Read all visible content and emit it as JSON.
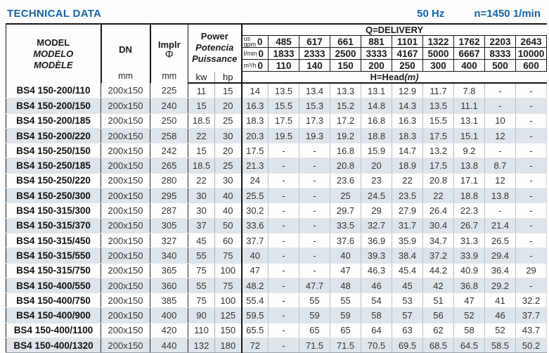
{
  "page": {
    "title": "TECHNICAL DATA",
    "frequency": "50 Hz",
    "speed": "n=1450 1/min",
    "accent_color": "#1565a8",
    "stripe_color": "#dde4ea"
  },
  "table": {
    "header": {
      "model_labels": [
        "MODEL",
        "MODELO",
        "MODÈLE"
      ],
      "dn_label": "DN",
      "implr_label": "Implr",
      "implr_symbol": "Φ",
      "power_labels": [
        "Power",
        "Potencia",
        "Puissance"
      ],
      "unit_mm": "mm",
      "unit_kw": "kw",
      "unit_hp": "hp",
      "delivery_title": "Q=DELIVERY",
      "head_title": "H=Head",
      "head_unit": "(m)",
      "unit_rows": [
        {
          "label_lines": [
            "us",
            "gpm"
          ],
          "zero": "0",
          "values": [
            "485",
            "617",
            "661",
            "881",
            "1101",
            "1322",
            "1762",
            "2203",
            "2643"
          ]
        },
        {
          "label_lines": [
            "l/min"
          ],
          "zero": "0",
          "values": [
            "1833",
            "2333",
            "2500",
            "3333",
            "4167",
            "5000",
            "6667",
            "8333",
            "10000"
          ]
        },
        {
          "label_lines": [
            "m³/h"
          ],
          "zero": "0",
          "values": [
            "110",
            "140",
            "150",
            "200",
            "250",
            "300",
            "400",
            "500",
            "600"
          ]
        }
      ]
    },
    "rows": [
      {
        "model": "BS4 150-200/110",
        "dn": "200x150",
        "implr": "225",
        "kw": "11",
        "hp": "15",
        "head": [
          "14",
          "13.5",
          "13.4",
          "13.3",
          "13.1",
          "12.9",
          "11.7",
          "7.8",
          "-",
          "-"
        ]
      },
      {
        "model": "BS4 150-200/150",
        "dn": "200x150",
        "implr": "240",
        "kw": "15",
        "hp": "20",
        "head": [
          "16.3",
          "15.5",
          "15.3",
          "15.2",
          "14.8",
          "14.3",
          "13.5",
          "11.1",
          "-",
          "-"
        ]
      },
      {
        "model": "BS4 150-200/185",
        "dn": "200x150",
        "implr": "250",
        "kw": "18.5",
        "hp": "25",
        "head": [
          "18.3",
          "17.5",
          "17.3",
          "17.2",
          "16.8",
          "16.3",
          "15.5",
          "13.1",
          "10",
          "-"
        ]
      },
      {
        "model": "BS4 150-200/220",
        "dn": "200x150",
        "implr": "258",
        "kw": "22",
        "hp": "30",
        "head": [
          "20.3",
          "19.5",
          "19.3",
          "19.2",
          "18.8",
          "18.3",
          "17.5",
          "15.1",
          "12",
          "-"
        ]
      },
      {
        "model": "BS4 150-250/150",
        "dn": "200x150",
        "implr": "242",
        "kw": "15",
        "hp": "20",
        "head": [
          "17.5",
          "-",
          "-",
          "16.8",
          "15.9",
          "14.7",
          "13.2",
          "9.2",
          "-",
          "-"
        ]
      },
      {
        "model": "BS4 150-250/185",
        "dn": "200x150",
        "implr": "265",
        "kw": "18.5",
        "hp": "25",
        "head": [
          "21.3",
          "-",
          "-",
          "20.8",
          "20",
          "18.9",
          "17.5",
          "13.8",
          "8.7",
          "-"
        ]
      },
      {
        "model": "BS4 150-250/220",
        "dn": "200x150",
        "implr": "280",
        "kw": "22",
        "hp": "30",
        "head": [
          "24",
          "-",
          "-",
          "23.6",
          "23",
          "22",
          "20.8",
          "17.1",
          "12",
          "-"
        ]
      },
      {
        "model": "BS4 150-250/300",
        "dn": "200x150",
        "implr": "295",
        "kw": "30",
        "hp": "40",
        "head": [
          "25.5",
          "-",
          "-",
          "25",
          "24.5",
          "23.5",
          "22",
          "18.8",
          "13.8",
          "-"
        ]
      },
      {
        "model": "BS4 150-315/300",
        "dn": "200x150",
        "implr": "287",
        "kw": "30",
        "hp": "40",
        "head": [
          "30.2",
          "-",
          "-",
          "29.7",
          "29",
          "27.9",
          "26.4",
          "22.3",
          "-",
          "-"
        ]
      },
      {
        "model": "BS4 150-315/370",
        "dn": "200x150",
        "implr": "305",
        "kw": "37",
        "hp": "50",
        "head": [
          "33.6",
          "-",
          "-",
          "33.5",
          "32.7",
          "31.7",
          "30.4",
          "26.7",
          "21.4",
          "-"
        ]
      },
      {
        "model": "BS4 150-315/450",
        "dn": "200x150",
        "implr": "327",
        "kw": "45",
        "hp": "60",
        "head": [
          "37.7",
          "-",
          "-",
          "37.6",
          "36.9",
          "35.9",
          "34.7",
          "31.3",
          "26.5",
          "-"
        ]
      },
      {
        "model": "BS4 150-315/550",
        "dn": "200x150",
        "implr": "340",
        "kw": "55",
        "hp": "75",
        "head": [
          "40",
          "-",
          "-",
          "40",
          "39.3",
          "38.4",
          "37.2",
          "33.9",
          "29.4",
          "-"
        ]
      },
      {
        "model": "BS4 150-315/750",
        "dn": "200x150",
        "implr": "365",
        "kw": "75",
        "hp": "100",
        "head": [
          "47",
          "-",
          "-",
          "47",
          "46.3",
          "45.4",
          "44.2",
          "40.9",
          "36.4",
          "29"
        ]
      },
      {
        "model": "BS4 150-400/550",
        "dn": "200x150",
        "implr": "360",
        "kw": "55",
        "hp": "75",
        "head": [
          "48.2",
          "-",
          "47.7",
          "48",
          "46",
          "45",
          "42",
          "36.8",
          "29.2",
          "-"
        ]
      },
      {
        "model": "BS4 150-400/750",
        "dn": "200x150",
        "implr": "385",
        "kw": "75",
        "hp": "100",
        "head": [
          "55.4",
          "-",
          "55",
          "55",
          "54",
          "53",
          "51",
          "47",
          "41",
          "32.2"
        ]
      },
      {
        "model": "BS4 150-400/900",
        "dn": "200x150",
        "implr": "400",
        "kw": "90",
        "hp": "125",
        "head": [
          "59.5",
          "-",
          "59",
          "59",
          "58",
          "57",
          "56",
          "52",
          "46",
          "37.7"
        ]
      },
      {
        "model": "BS4 150-400/1100",
        "dn": "200x150",
        "implr": "420",
        "kw": "110",
        "hp": "150",
        "head": [
          "65.5",
          "-",
          "65",
          "65",
          "64",
          "63",
          "62",
          "58",
          "52",
          "43.7"
        ]
      },
      {
        "model": "BS4 150-400/1320",
        "dn": "200x150",
        "implr": "440",
        "kw": "132",
        "hp": "180",
        "head": [
          "72",
          "-",
          "71.5",
          "71.5",
          "70.5",
          "69.5",
          "68.5",
          "64.5",
          "58.5",
          "50.2"
        ]
      }
    ]
  }
}
